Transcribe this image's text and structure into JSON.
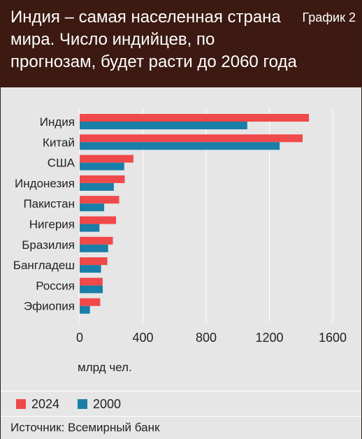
{
  "header": {
    "title": "Индия – самая населенная страна мира. Число индийцев, по прогнозам, будет расти до 2060 года",
    "tag": "График 2"
  },
  "colors": {
    "series_2024": "#f0494a",
    "series_2000": "#1a7fa8",
    "header_bg": "#3c1a12",
    "panel_bg": "#e6e6e6"
  },
  "chart_data": {
    "type": "bar",
    "orientation": "horizontal",
    "categories": [
      "Индия",
      "Китай",
      "США",
      "Индонезия",
      "Пакистан",
      "Нигерия",
      "Бразилия",
      "Бангладеш",
      "Россия",
      "Эфиопия"
    ],
    "series": [
      {
        "name": "2024",
        "values": [
          1450,
          1410,
          340,
          285,
          250,
          230,
          210,
          175,
          145,
          130
        ]
      },
      {
        "name": "2000",
        "values": [
          1060,
          1265,
          282,
          216,
          155,
          125,
          180,
          135,
          146,
          65
        ]
      }
    ],
    "x_ticks": [
      "0",
      "400",
      "800",
      "1200",
      "1600"
    ],
    "xlim": [
      0,
      1600
    ],
    "xlabel": "млрд чел.",
    "grid": true,
    "legend_position": "bottom"
  },
  "source": {
    "text": "Источник: Всемирный банк"
  }
}
